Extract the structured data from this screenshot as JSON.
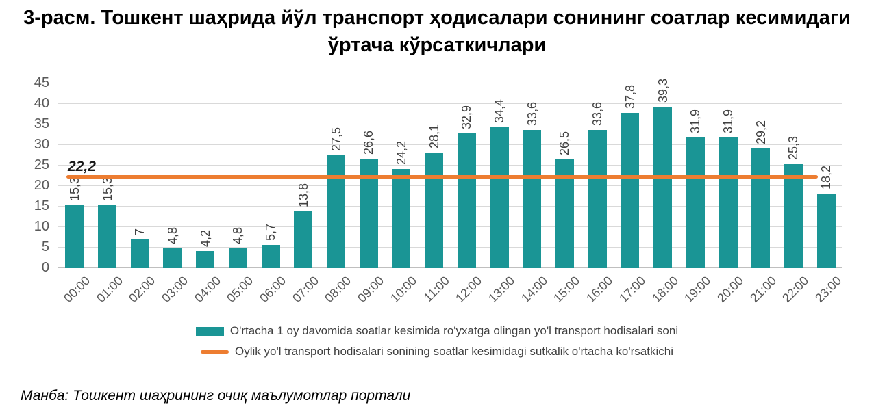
{
  "title": "3-расм. Тошкент шаҳрида йўл транспорт ҳодисалари сонининг соатлар кесимидаги ўртача кўрсаткичлари",
  "source_note": "Манба: Тошкент шаҳрининг очиқ маълумотлар портали",
  "colors": {
    "bar": "#1a9595",
    "line": "#ed7d31",
    "grid": "#d9d9d9",
    "axis": "#bfbfbf",
    "tick_text": "#595959",
    "value_text": "#404040"
  },
  "chart_data": {
    "type": "bar",
    "title": "3-расм. Тошкент шаҳрида йўл транспорт ҳодисалари сонининг соатлар кесимидаги ўртача кўрсаткичлари",
    "categories": [
      "00:00",
      "01:00",
      "02:00",
      "03:00",
      "04:00",
      "05:00",
      "06:00",
      "07:00",
      "08:00",
      "09:00",
      "10:00",
      "11:00",
      "12:00",
      "13:00",
      "14:00",
      "15:00",
      "16:00",
      "17:00",
      "18:00",
      "19:00",
      "20:00",
      "21:00",
      "22:00",
      "23:00"
    ],
    "series": [
      {
        "name": "O'rtacha 1 oy davomida soatlar kesimida ro'yxatga olingan yo'l transport hodisalari soni",
        "type": "bar",
        "color": "#1a9595",
        "values": [
          15.3,
          15.3,
          7,
          4.8,
          4.2,
          4.8,
          5.7,
          13.8,
          27.5,
          26.6,
          24.2,
          28.1,
          32.9,
          34.4,
          33.6,
          26.5,
          33.6,
          37.8,
          39.3,
          31.9,
          31.9,
          29.2,
          25.3,
          18.2
        ],
        "data_labels": [
          "15,3",
          "15,3",
          "7",
          "4,8",
          "4,2",
          "4,8",
          "5,7",
          "13,8",
          "27,5",
          "26,6",
          "24,2",
          "28,1",
          "32,9",
          "34,4",
          "33,6",
          "26,5",
          "33,6",
          "37,8",
          "39,3",
          "31,9",
          "31,9",
          "29,2",
          "25,3",
          "18,2"
        ]
      },
      {
        "name": "Oylik yo'l transport hodisalari sonining soatlar kesimidagi sutkalik o'rtacha ko'rsatkichi",
        "type": "line",
        "color": "#ed7d31",
        "constant_value": 22.2,
        "data_label": "22,2"
      }
    ],
    "xlabel": "",
    "ylabel": "",
    "ylim": [
      0,
      45
    ],
    "yticks": [
      0,
      5,
      10,
      15,
      20,
      25,
      30,
      35,
      40,
      45
    ],
    "grid": true,
    "legend_position": "bottom"
  }
}
